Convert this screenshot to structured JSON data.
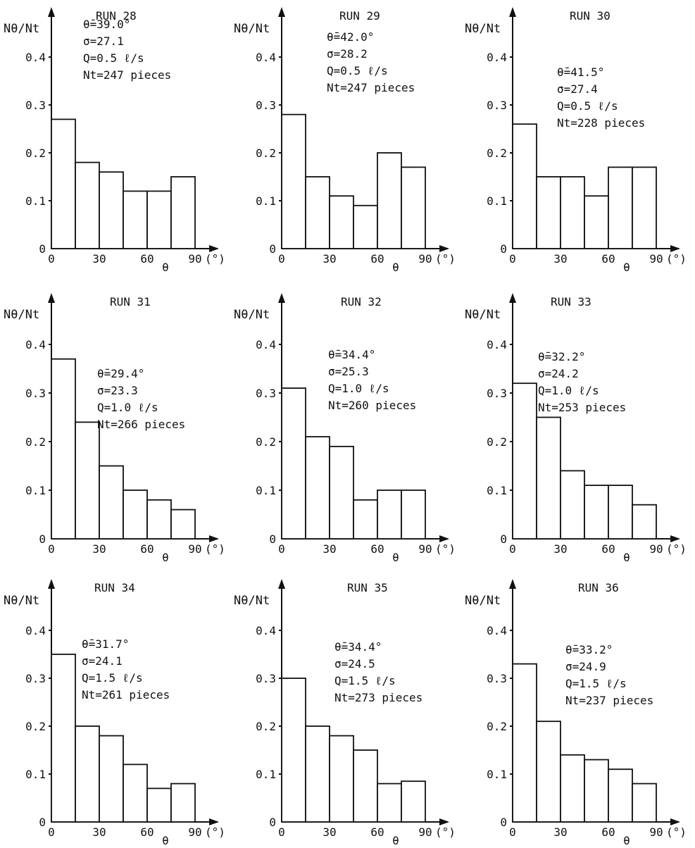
{
  "chart_data": [
    {
      "type": "bar",
      "title": "RUN 28",
      "ylabel": "Nθ/Nt",
      "xlabel": "θ",
      "x_unit": "(°)",
      "stats": [
        "θ̄=39.0°",
        "σ=27.1",
        "Q=0.5 ℓ/s",
        "Nt=247 pieces"
      ],
      "categories": [
        "0-15",
        "15-30",
        "30-45",
        "45-60",
        "60-75",
        "75-90"
      ],
      "values": [
        0.27,
        0.18,
        0.16,
        0.12,
        0.12,
        0.15
      ],
      "ylim": [
        0,
        0.4
      ],
      "xlim": [
        0,
        90
      ],
      "x_ticks": [
        "0",
        "30",
        "60",
        "90"
      ],
      "y_ticks": [
        "0",
        "0.1",
        "0.2",
        "0.3",
        "0.4"
      ],
      "grid": false
    },
    {
      "type": "bar",
      "title": "RUN 29",
      "ylabel": "Nθ/Nt",
      "xlabel": "θ",
      "x_unit": "(°)",
      "stats": [
        "θ̄=42.0°",
        "σ=28.2",
        "Q=0.5 ℓ/s",
        "Nt=247 pieces"
      ],
      "categories": [
        "0-15",
        "15-30",
        "30-45",
        "45-60",
        "60-75",
        "75-90"
      ],
      "values": [
        0.28,
        0.15,
        0.11,
        0.09,
        0.2,
        0.17
      ],
      "ylim": [
        0,
        0.4
      ],
      "xlim": [
        0,
        90
      ],
      "x_ticks": [
        "0",
        "30",
        "60",
        "90"
      ],
      "y_ticks": [
        "0",
        "0.1",
        "0.2",
        "0.3",
        "0.4"
      ],
      "grid": false
    },
    {
      "type": "bar",
      "title": "RUN 30",
      "ylabel": "Nθ/Nt",
      "xlabel": "θ",
      "x_unit": "(°)",
      "stats": [
        "θ̄=41.5°",
        "σ=27.4",
        "Q=0.5 ℓ/s",
        "Nt=228 pieces"
      ],
      "categories": [
        "0-15",
        "15-30",
        "30-45",
        "45-60",
        "60-75",
        "75-90"
      ],
      "values": [
        0.26,
        0.15,
        0.15,
        0.11,
        0.17,
        0.17
      ],
      "ylim": [
        0,
        0.4
      ],
      "xlim": [
        0,
        90
      ],
      "x_ticks": [
        "0",
        "30",
        "60",
        "90"
      ],
      "y_ticks": [
        "0",
        "0.1",
        "0.2",
        "0.3",
        "0.4"
      ],
      "grid": false
    },
    {
      "type": "bar",
      "title": "RUN 31",
      "ylabel": "Nθ/Nt",
      "xlabel": "θ",
      "x_unit": "(°)",
      "stats": [
        "θ̄=29.4°",
        "σ=23.3",
        "Q=1.0 ℓ/s",
        "Nt=266 pieces"
      ],
      "categories": [
        "0-15",
        "15-30",
        "30-45",
        "45-60",
        "60-75",
        "75-90"
      ],
      "values": [
        0.37,
        0.24,
        0.15,
        0.1,
        0.08,
        0.06
      ],
      "ylim": [
        0,
        0.4
      ],
      "xlim": [
        0,
        90
      ],
      "x_ticks": [
        "0",
        "30",
        "60",
        "90"
      ],
      "y_ticks": [
        "0",
        "0.1",
        "0.2",
        "0.3",
        "0.4"
      ],
      "grid": false
    },
    {
      "type": "bar",
      "title": "RUN 32",
      "ylabel": "Nθ/Nt",
      "xlabel": "θ",
      "x_unit": "(°)",
      "stats": [
        "θ̄=34.4°",
        "σ=25.3",
        "Q=1.0 ℓ/s",
        "Nt=260 pieces"
      ],
      "categories": [
        "0-15",
        "15-30",
        "30-45",
        "45-60",
        "60-75",
        "75-90"
      ],
      "values": [
        0.31,
        0.21,
        0.19,
        0.08,
        0.1,
        0.1
      ],
      "ylim": [
        0,
        0.4
      ],
      "xlim": [
        0,
        90
      ],
      "x_ticks": [
        "0",
        "30",
        "60",
        "90"
      ],
      "y_ticks": [
        "0",
        "0.1",
        "0.2",
        "0.3",
        "0.4"
      ],
      "grid": false
    },
    {
      "type": "bar",
      "title": "RUN 33",
      "ylabel": "Nθ/Nt",
      "xlabel": "θ",
      "x_unit": "(°)",
      "stats": [
        "θ̄=32.2°",
        "σ=24.2",
        "Q=1.0 ℓ/s",
        "Nt=253 pieces"
      ],
      "categories": [
        "0-15",
        "15-30",
        "30-45",
        "45-60",
        "60-75",
        "75-90"
      ],
      "values": [
        0.32,
        0.25,
        0.14,
        0.11,
        0.11,
        0.07
      ],
      "ylim": [
        0,
        0.4
      ],
      "xlim": [
        0,
        90
      ],
      "x_ticks": [
        "0",
        "30",
        "60",
        "90"
      ],
      "y_ticks": [
        "0",
        "0.1",
        "0.2",
        "0.3",
        "0.4"
      ],
      "grid": false
    },
    {
      "type": "bar",
      "title": "RUN 34",
      "ylabel": "Nθ/Nt",
      "xlabel": "θ",
      "x_unit": "(°)",
      "stats": [
        "θ̄=31.7°",
        "σ=24.1",
        "Q=1.5 ℓ/s",
        "Nt=261 pieces"
      ],
      "categories": [
        "0-15",
        "15-30",
        "30-45",
        "45-60",
        "60-75",
        "75-90"
      ],
      "values": [
        0.35,
        0.2,
        0.18,
        0.12,
        0.07,
        0.08
      ],
      "ylim": [
        0,
        0.4
      ],
      "xlim": [
        0,
        90
      ],
      "x_ticks": [
        "0",
        "30",
        "60",
        "90"
      ],
      "y_ticks": [
        "0",
        "0.1",
        "0.2",
        "0.3",
        "0.4"
      ],
      "grid": false
    },
    {
      "type": "bar",
      "title": "RUN 35",
      "ylabel": "Nθ/Nt",
      "xlabel": "θ",
      "x_unit": "(°)",
      "stats": [
        "θ̄=34.4°",
        "σ=24.5",
        "Q=1.5 ℓ/s",
        "Nt=273 pieces"
      ],
      "categories": [
        "0-15",
        "15-30",
        "30-45",
        "45-60",
        "60-75",
        "75-90"
      ],
      "values": [
        0.3,
        0.2,
        0.18,
        0.15,
        0.08,
        0.085
      ],
      "ylim": [
        0,
        0.4
      ],
      "xlim": [
        0,
        90
      ],
      "x_ticks": [
        "0",
        "30",
        "60",
        "90"
      ],
      "y_ticks": [
        "0",
        "0.1",
        "0.2",
        "0.3",
        "0.4"
      ],
      "grid": false
    },
    {
      "type": "bar",
      "title": "RUN 36",
      "ylabel": "Nθ/Nt",
      "xlabel": "θ",
      "x_unit": "(°)",
      "stats": [
        "θ̄=33.2°",
        "σ=24.9",
        "Q=1.5 ℓ/s",
        "Nt=237 pieces"
      ],
      "categories": [
        "0-15",
        "15-30",
        "30-45",
        "45-60",
        "60-75",
        "75-90"
      ],
      "values": [
        0.33,
        0.21,
        0.14,
        0.13,
        0.11,
        0.08
      ],
      "ylim": [
        0,
        0.4
      ],
      "xlim": [
        0,
        90
      ],
      "x_ticks": [
        "0",
        "30",
        "60",
        "90"
      ],
      "y_ticks": [
        "0",
        "0.1",
        "0.2",
        "0.3",
        "0.4"
      ],
      "grid": false
    }
  ]
}
